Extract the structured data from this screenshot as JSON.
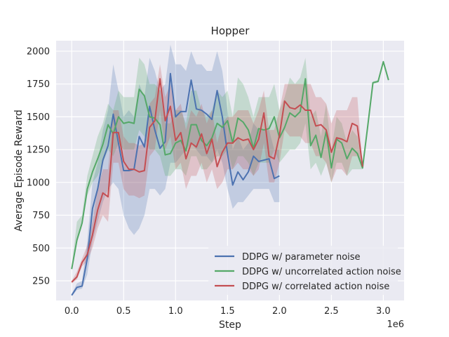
{
  "chart_data": {
    "type": "line",
    "title": "Hopper",
    "xlabel": "Step",
    "ylabel": "Average Episode Reward",
    "x_offset_label": "1e6",
    "xlim": [
      -0.15,
      3.2
    ],
    "ylim": [
      100,
      2080
    ],
    "xticks": [
      0,
      0.5,
      1.0,
      1.5,
      2.0,
      2.5,
      3.0
    ],
    "xtick_labels": [
      "0.0",
      "0.5",
      "1.0",
      "1.5",
      "2.0",
      "2.5",
      "3.0"
    ],
    "yticks": [
      250,
      500,
      750,
      1000,
      1250,
      1500,
      1750,
      2000
    ],
    "ytick_labels": [
      "250",
      "500",
      "750",
      "1000",
      "1250",
      "1500",
      "1750",
      "2000"
    ],
    "grid": true,
    "legend_position": "lower-right",
    "series": [
      {
        "name": "DDPG w/ parameter noise",
        "color": "#4c72b0",
        "x": [
          0.0,
          0.05,
          0.1,
          0.15,
          0.2,
          0.25,
          0.3,
          0.35,
          0.4,
          0.45,
          0.5,
          0.55,
          0.6,
          0.65,
          0.7,
          0.75,
          0.8,
          0.85,
          0.9,
          0.95,
          1.0,
          1.05,
          1.1,
          1.15,
          1.2,
          1.25,
          1.3,
          1.35,
          1.4,
          1.45,
          1.5,
          1.55,
          1.6,
          1.65,
          1.7,
          1.75,
          1.8,
          1.85,
          1.9,
          1.95,
          2.0
        ],
        "values": [
          140,
          200,
          210,
          420,
          800,
          950,
          1170,
          1280,
          1520,
          1300,
          1090,
          1090,
          1100,
          1350,
          1270,
          1580,
          1400,
          1260,
          1310,
          1830,
          1500,
          1540,
          1540,
          1780,
          1560,
          1550,
          1520,
          1480,
          1700,
          1500,
          1220,
          980,
          1080,
          1020,
          1080,
          1200,
          1160,
          1170,
          1180,
          1030,
          1050
        ],
        "lower": [
          130,
          180,
          190,
          300,
          550,
          700,
          850,
          950,
          1000,
          950,
          750,
          650,
          600,
          650,
          750,
          950,
          950,
          900,
          950,
          1150,
          1150,
          1200,
          1250,
          1300,
          1250,
          1200,
          1200,
          1150,
          1250,
          1150,
          950,
          800,
          850,
          850,
          900,
          950,
          950,
          950,
          950,
          850,
          850
        ],
        "upper": [
          150,
          230,
          250,
          550,
          1000,
          1150,
          1400,
          1550,
          1900,
          1700,
          1500,
          1550,
          1500,
          1750,
          1650,
          1950,
          1850,
          1700,
          1750,
          2050,
          1900,
          1900,
          1850,
          2000,
          1900,
          1900,
          1850,
          1850,
          2000,
          1850,
          1550,
          1250,
          1350,
          1250,
          1300,
          1450,
          1400,
          1400,
          1400,
          1250,
          1250
        ]
      },
      {
        "name": "DDPG w/ uncorrelated action noise",
        "color": "#55a868",
        "x": [
          0.0,
          0.05,
          0.1,
          0.15,
          0.2,
          0.25,
          0.3,
          0.35,
          0.4,
          0.45,
          0.5,
          0.55,
          0.6,
          0.65,
          0.7,
          0.75,
          0.8,
          0.85,
          0.9,
          0.95,
          1.0,
          1.05,
          1.1,
          1.15,
          1.2,
          1.25,
          1.3,
          1.35,
          1.4,
          1.45,
          1.5,
          1.55,
          1.6,
          1.65,
          1.7,
          1.75,
          1.8,
          1.85,
          1.9,
          1.95,
          2.0,
          2.05,
          2.1,
          2.15,
          2.2,
          2.25,
          2.3,
          2.35,
          2.4,
          2.45,
          2.5,
          2.55,
          2.6,
          2.65,
          2.7,
          2.75,
          2.8,
          2.85,
          2.9,
          2.95,
          3.0,
          3.05
        ],
        "values": [
          340,
          560,
          690,
          950,
          1080,
          1180,
          1290,
          1440,
          1370,
          1500,
          1450,
          1460,
          1450,
          1710,
          1660,
          1500,
          1490,
          1440,
          1210,
          1220,
          1300,
          1320,
          1240,
          1440,
          1440,
          1320,
          1280,
          1340,
          1450,
          1420,
          1470,
          1300,
          1490,
          1460,
          1400,
          1260,
          1410,
          1400,
          1410,
          1500,
          1340,
          1420,
          1530,
          1500,
          1540,
          1790,
          1280,
          1360,
          1190,
          1390,
          1110,
          1330,
          1300,
          1180,
          1260,
          1220,
          1110,
          1430,
          1760,
          1770,
          1920,
          1780
        ],
        "lower": [
          330,
          540,
          670,
          900,
          1000,
          1050,
          1150,
          1250,
          1200,
          1300,
          1250,
          1250,
          1250,
          1400,
          1350,
          1250,
          1250,
          1200,
          1050,
          1050,
          1100,
          1100,
          1050,
          1200,
          1200,
          1100,
          1100,
          1150,
          1200,
          1200,
          1250,
          1100,
          1200,
          1200,
          1150,
          1050,
          1150,
          1150,
          1150,
          1250,
          1150,
          1200,
          1250,
          1250,
          1300,
          1450,
          1100,
          1150,
          1050,
          1150,
          1000,
          1150,
          1150,
          1050,
          1100,
          1100,
          1100,
          1420,
          1750,
          1760,
          1910,
          1770
        ],
        "upper": [
          350,
          700,
          750,
          1050,
          1200,
          1350,
          1450,
          1600,
          1550,
          1700,
          1650,
          1650,
          1650,
          1950,
          1900,
          1750,
          1750,
          1700,
          1450,
          1450,
          1550,
          1550,
          1450,
          1700,
          1700,
          1550,
          1500,
          1550,
          1700,
          1650,
          1700,
          1500,
          1800,
          1750,
          1650,
          1500,
          1650,
          1650,
          1650,
          1750,
          1550,
          1650,
          1800,
          1750,
          1800,
          1950,
          1500,
          1550,
          1350,
          1600,
          1250,
          1500,
          1450,
          1300,
          1400,
          1350,
          1120,
          1440,
          1770,
          1780,
          1930,
          1790
        ]
      },
      {
        "name": "DDPG w/ correlated action noise",
        "color": "#c44e52",
        "x": [
          0.0,
          0.05,
          0.1,
          0.15,
          0.2,
          0.25,
          0.3,
          0.35,
          0.4,
          0.45,
          0.5,
          0.55,
          0.6,
          0.65,
          0.7,
          0.75,
          0.8,
          0.85,
          0.9,
          0.95,
          1.0,
          1.05,
          1.1,
          1.15,
          1.2,
          1.25,
          1.3,
          1.35,
          1.4,
          1.45,
          1.5,
          1.55,
          1.6,
          1.65,
          1.7,
          1.75,
          1.8,
          1.85,
          1.9,
          1.95,
          2.0,
          2.05,
          2.1,
          2.15,
          2.2,
          2.25,
          2.3,
          2.35,
          2.4,
          2.45,
          2.5,
          2.55,
          2.6,
          2.65,
          2.7,
          2.75,
          2.8
        ],
        "values": [
          240,
          280,
          390,
          450,
          600,
          790,
          920,
          890,
          1380,
          1380,
          1160,
          1100,
          1100,
          1080,
          1090,
          1420,
          1470,
          1790,
          1470,
          1580,
          1320,
          1380,
          1180,
          1300,
          1270,
          1370,
          1220,
          1330,
          1120,
          1230,
          1300,
          1300,
          1340,
          1320,
          1330,
          1250,
          1330,
          1530,
          1200,
          1180,
          1360,
          1620,
          1570,
          1560,
          1590,
          1550,
          1550,
          1430,
          1440,
          1400,
          1230,
          1340,
          1330,
          1310,
          1450,
          1430,
          1120
        ],
        "lower": [
          230,
          260,
          360,
          400,
          500,
          650,
          750,
          700,
          1150,
          1150,
          950,
          900,
          900,
          880,
          900,
          1200,
          1250,
          1550,
          1250,
          1350,
          1100,
          1150,
          950,
          1050,
          1050,
          1150,
          1000,
          1100,
          950,
          1000,
          1100,
          1100,
          1150,
          1100,
          1100,
          1050,
          1100,
          1300,
          1000,
          1000,
          1150,
          1400,
          1350,
          1350,
          1350,
          1300,
          1300,
          1200,
          1200,
          1150,
          1000,
          1100,
          1100,
          1050,
          1200,
          1200,
          1110
        ],
        "upper": [
          250,
          320,
          420,
          520,
          700,
          950,
          1100,
          1100,
          1550,
          1550,
          1350,
          1300,
          1300,
          1280,
          1300,
          1600,
          1650,
          1900,
          1650,
          1750,
          1550,
          1600,
          1400,
          1550,
          1500,
          1600,
          1450,
          1550,
          1300,
          1450,
          1500,
          1500,
          1550,
          1550,
          1550,
          1450,
          1550,
          1700,
          1400,
          1400,
          1550,
          1750,
          1750,
          1750,
          1750,
          1750,
          1750,
          1650,
          1650,
          1600,
          1450,
          1550,
          1550,
          1550,
          1650,
          1650,
          1130
        ]
      }
    ]
  }
}
